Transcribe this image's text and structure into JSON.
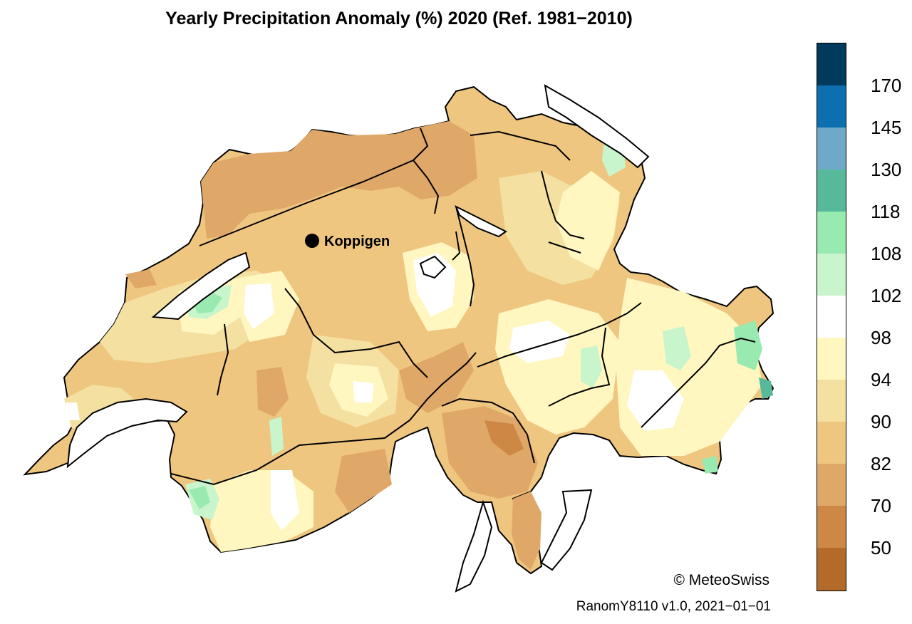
{
  "title": "Yearly Precipitation Anomaly (%) 2020  (Ref. 1981−2010)",
  "credit": "© MeteoSwiss",
  "version": "RanomY8110 v1.0, 2021−01−01",
  "marker": {
    "label": "Koppigen"
  },
  "legend": {
    "colors": [
      "#003a5c",
      "#0d6faf",
      "#6fa8c8",
      "#55b99a",
      "#98eab0",
      "#c8f5cc",
      "#ffffff",
      "#fff6c0",
      "#f4e0a0",
      "#efc680",
      "#e0a868",
      "#cd8846",
      "#b46a28"
    ],
    "ticks": [
      "170",
      "145",
      "130",
      "118",
      "108",
      "102",
      "98",
      "94",
      "90",
      "82",
      "70",
      "50"
    ]
  }
}
